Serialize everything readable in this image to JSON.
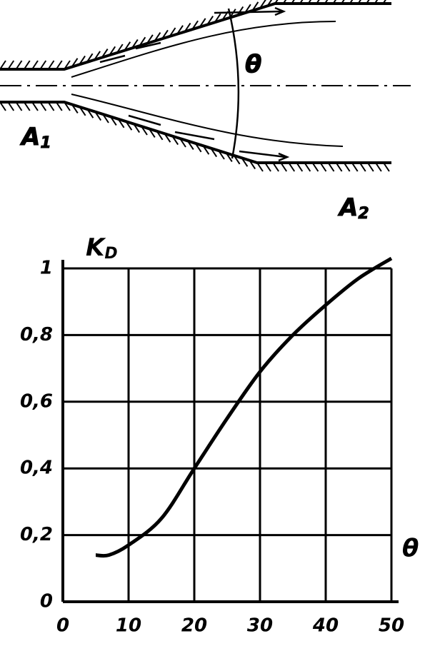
{
  "diagram": {
    "angle_label": "θ",
    "inlet_label": {
      "main": "A",
      "sub": "1"
    },
    "outlet_label": {
      "main": "A",
      "sub": "2"
    }
  },
  "chart_data": {
    "type": "line",
    "y_label": {
      "main": "K",
      "sub": "D"
    },
    "x_label": "θ",
    "x": [
      5,
      7,
      10,
      15,
      20,
      25,
      30,
      35,
      40,
      45,
      50
    ],
    "values": [
      0.14,
      0.14,
      0.17,
      0.25,
      0.4,
      0.55,
      0.69,
      0.8,
      0.89,
      0.97,
      1.03
    ],
    "color": "#000000",
    "xlim": [
      0,
      50
    ],
    "xticks": [
      0,
      10,
      20,
      30,
      40,
      50
    ],
    "ylim": [
      0,
      1
    ],
    "yticks": [
      0,
      {
        "value": 0.2,
        "label": "0,2"
      },
      {
        "value": 0.4,
        "label": "0,4"
      },
      {
        "value": 0.6,
        "label": "0,6"
      },
      {
        "value": 0.8,
        "label": "0,8"
      },
      1
    ],
    "grid": true
  }
}
